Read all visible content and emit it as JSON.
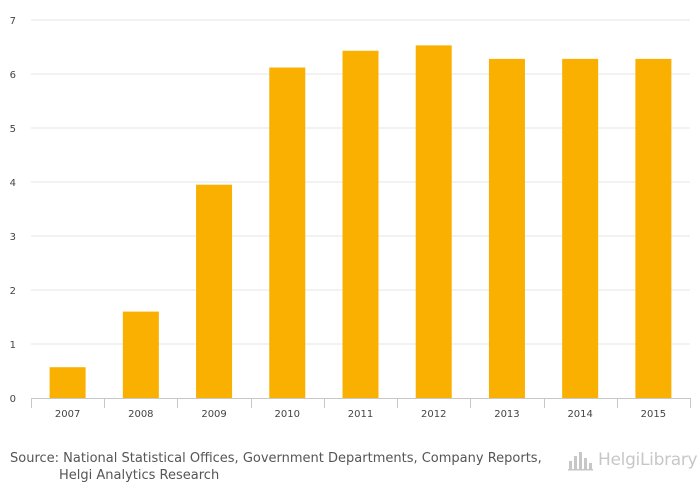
{
  "chart_data": {
    "type": "bar",
    "categories": [
      "2007",
      "2008",
      "2009",
      "2010",
      "2011",
      "2012",
      "2013",
      "2014",
      "2015"
    ],
    "values": [
      0.57,
      1.6,
      3.95,
      6.12,
      6.43,
      6.53,
      6.28,
      6.28,
      6.28
    ],
    "ylim": [
      0,
      7
    ],
    "yticks": [
      "0",
      "1",
      "2",
      "3",
      "4",
      "5",
      "6",
      "7"
    ],
    "bar_color": "#f9b000",
    "grid": true,
    "title": "",
    "xlabel": "",
    "ylabel": ""
  },
  "footer": {
    "source_prefix": "Source:",
    "source_line1": "National Statistical Offices, Government Departments, Company Reports,",
    "source_line2": "Helgi Analytics Research"
  },
  "logo": {
    "text": "HelgiLibrary",
    "icon": "bar-chart-logo-icon"
  }
}
